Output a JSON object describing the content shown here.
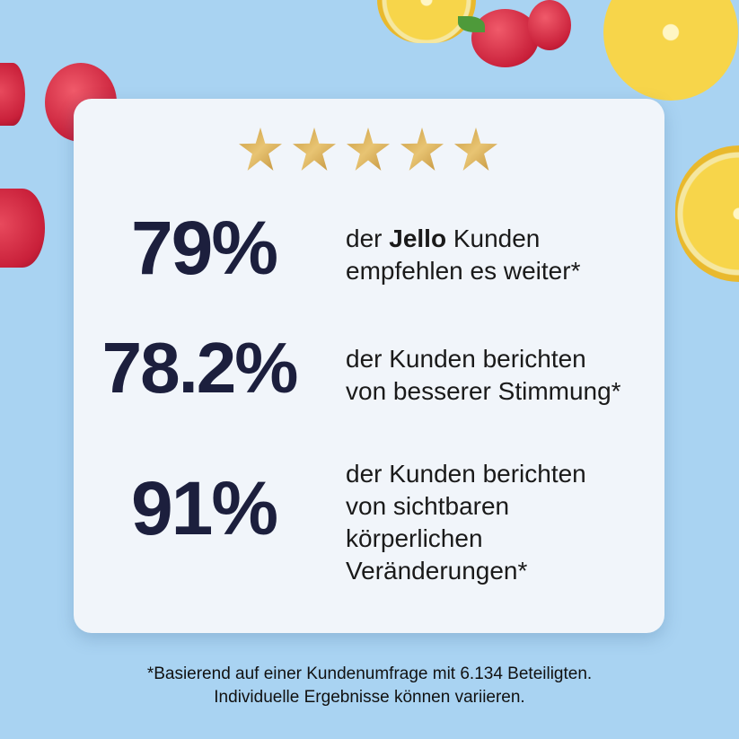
{
  "rating": {
    "stars": 5,
    "max": 5,
    "color": "#d4aa55"
  },
  "stats": [
    {
      "value": "79%",
      "line1_pre": "der ",
      "line1_bold": "Jello",
      "line1_post": " Kunden",
      "lines": [
        "empfehlen es weiter*"
      ]
    },
    {
      "value": "78.2%",
      "lines": [
        "der Kunden berichten",
        "von besserer Stimmung*"
      ]
    },
    {
      "value": "91%",
      "lines": [
        "der Kunden berichten",
        "von sichtbaren",
        "körperlichen",
        "Veränderungen*"
      ]
    }
  ],
  "footer": {
    "line1": "*Basierend auf einer Kundenumfrage mit 6.134 Beteiligten.",
    "line2": "Individuelle Ergebnisse können variieren."
  },
  "colors": {
    "background": "#a9d3f2",
    "card": "#f1f5fa",
    "number": "#1c1f3d"
  }
}
